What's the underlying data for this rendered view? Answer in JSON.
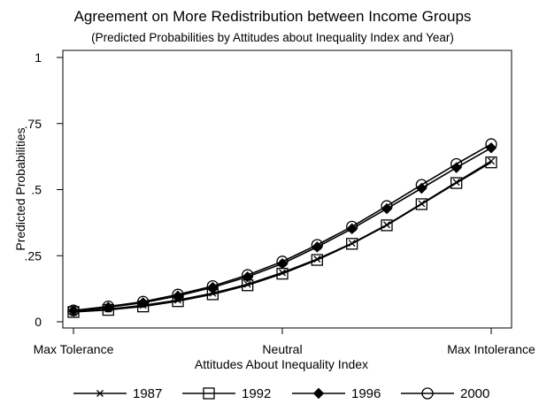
{
  "chart_data": {
    "type": "line",
    "title": "Agreement on More Redistribution between Income Groups",
    "subtitle": "(Predicted Probabilities by Attitudes about Inequality Index and Year)",
    "xlabel": "Attitudes About Inequality Index",
    "ylabel": "Predicted Probabilities",
    "x_tick_labels": [
      "Max Tolerance",
      "Neutral",
      "Max Intolerance"
    ],
    "y_tick_labels": [
      "0",
      ".25",
      ".5",
      ".75",
      "1"
    ],
    "y_ticks": [
      0,
      0.25,
      0.5,
      0.75,
      1
    ],
    "ylim": [
      0,
      1
    ],
    "xlim": [
      0,
      12
    ],
    "x": [
      0,
      1,
      2,
      3,
      4,
      5,
      6,
      7,
      8,
      9,
      10,
      11,
      12
    ],
    "legend_position": "bottom",
    "grid": false,
    "series": [
      {
        "name": "1987",
        "marker": "x",
        "values": [
          0.04,
          0.048,
          0.062,
          0.082,
          0.108,
          0.142,
          0.186,
          0.237,
          0.297,
          0.367,
          0.447,
          0.528,
          0.608
        ]
      },
      {
        "name": "1992",
        "marker": "square",
        "values": [
          0.037,
          0.045,
          0.058,
          0.078,
          0.104,
          0.138,
          0.182,
          0.234,
          0.295,
          0.365,
          0.445,
          0.525,
          0.603
        ]
      },
      {
        "name": "1996",
        "marker": "diamond",
        "values": [
          0.042,
          0.055,
          0.072,
          0.098,
          0.13,
          0.17,
          0.22,
          0.283,
          0.352,
          0.428,
          0.505,
          0.583,
          0.658
        ]
      },
      {
        "name": "2000",
        "marker": "circle",
        "values": [
          0.043,
          0.058,
          0.076,
          0.103,
          0.135,
          0.177,
          0.228,
          0.291,
          0.36,
          0.438,
          0.518,
          0.597,
          0.672
        ]
      }
    ]
  }
}
